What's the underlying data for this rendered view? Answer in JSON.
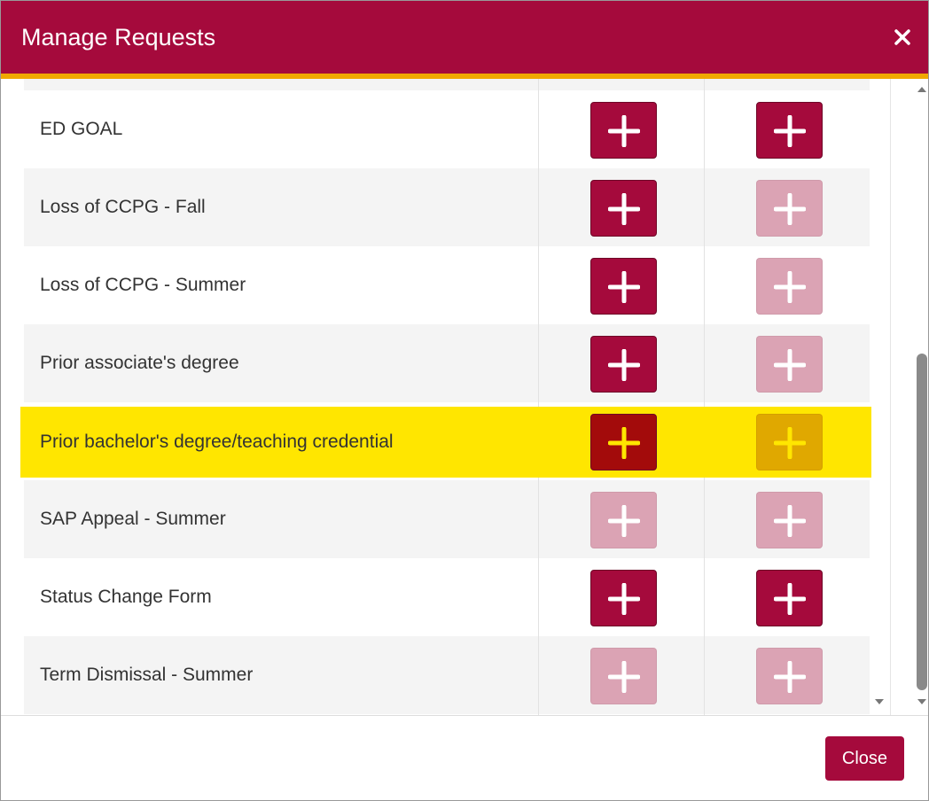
{
  "header": {
    "title": "Manage Requests"
  },
  "table": {
    "highlight": 4,
    "rows": [
      {
        "label": "ED GOAL",
        "buttons": [
          "enabled",
          "enabled"
        ]
      },
      {
        "label": "Loss of CCPG - Fall",
        "buttons": [
          "enabled",
          "disabled"
        ]
      },
      {
        "label": "Loss of CCPG - Summer",
        "buttons": [
          "enabled",
          "disabled"
        ]
      },
      {
        "label": "Prior associate's degree",
        "buttons": [
          "enabled",
          "disabled"
        ]
      },
      {
        "label": "Prior bachelor's degree/teaching credential",
        "buttons": [
          "enabled",
          "disabled"
        ]
      },
      {
        "label": "SAP Appeal - Summer",
        "buttons": [
          "disabled",
          "disabled"
        ]
      },
      {
        "label": "Status Change Form",
        "buttons": [
          "enabled",
          "enabled"
        ]
      },
      {
        "label": "Term Dismissal - Summer",
        "buttons": [
          "disabled",
          "disabled"
        ]
      }
    ]
  },
  "footer": {
    "close": "Close"
  }
}
